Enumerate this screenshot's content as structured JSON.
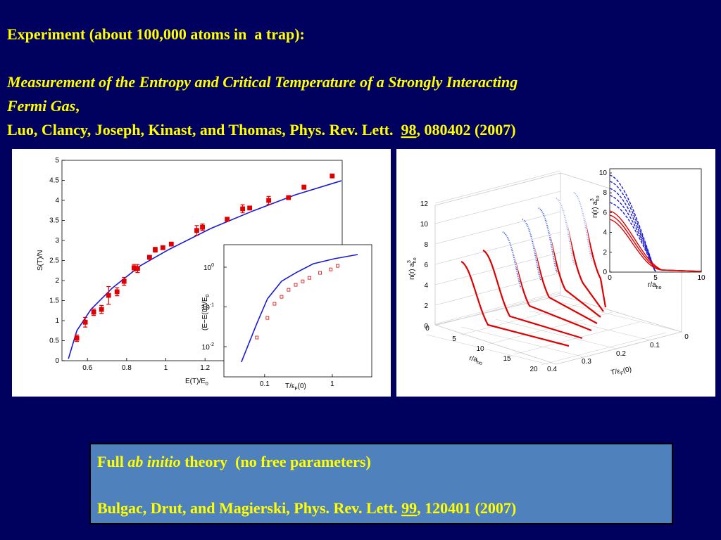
{
  "header": {
    "line1": "Experiment (about 100,000 atoms in  a trap):",
    "paper_title": "Measurement of the Entropy and Critical Temperature of a Strongly Interacting",
    "paper_title_end": "Fermi Gas",
    "comma": ",",
    "authors": "Luo, Clancy, Joseph, Kinast, and Thomas, Phys. Rev. Lett.  ",
    "volume": "98",
    "rest": ", 080402 (2007)"
  },
  "left_figure": {
    "main": {
      "xlabel": {
        "text": "E(T)/E",
        "sub": "0"
      },
      "ylabel": {
        "text": "S(T)/N"
      },
      "xlim": [
        0.47,
        1.9
      ],
      "ylim": [
        0,
        5
      ],
      "xticks": [
        0.6,
        0.8,
        1,
        1.2
      ],
      "yticks": [
        0,
        0.5,
        1,
        1.5,
        2,
        2.5,
        3,
        3.5,
        4,
        4.5,
        5
      ],
      "experiment": {
        "color": "#e00000",
        "x": [
          0.546,
          0.589,
          0.632,
          0.672,
          0.708,
          0.751,
          0.787,
          0.838,
          0.856,
          0.917,
          0.946,
          0.985,
          1.028,
          1.158,
          1.187,
          1.313,
          1.392,
          1.428,
          1.525,
          1.626,
          1.705,
          1.849
        ],
        "values": [
          0.56,
          0.96,
          1.21,
          1.28,
          1.63,
          1.72,
          1.98,
          2.32,
          2.3,
          2.58,
          2.77,
          2.82,
          2.91,
          3.25,
          3.33,
          3.53,
          3.79,
          3.81,
          4.0,
          4.07,
          4.33,
          4.61
        ],
        "errors": [
          0.08,
          0.12,
          0.08,
          0.1,
          0.22,
          0.1,
          0.1,
          0.08,
          0.1,
          0.05,
          0.06,
          0.04,
          0.04,
          0.12,
          0.08,
          0.04,
          0.1,
          0.04,
          0.1,
          0.04,
          0.05,
          0.04
        ]
      },
      "theory": {
        "color": "#1a1ad6",
        "x": [
          0.503,
          0.546,
          0.618,
          0.726,
          0.87,
          1.014,
          1.23,
          1.446,
          1.662,
          1.896
        ],
        "values": [
          0.05,
          0.75,
          1.28,
          1.81,
          2.37,
          2.77,
          3.3,
          3.74,
          4.14,
          4.49
        ]
      }
    },
    "inset": {
      "xlabel": {
        "text": "T/ε",
        "sub": "F",
        "after": "(0)"
      },
      "ylabel": {
        "text": "(E−E(0))/E",
        "sub": "0"
      },
      "xlim": [
        0.025,
        3.83
      ],
      "ylim": [
        0.00174,
        3.68
      ],
      "log": true,
      "xticks": [
        0.1,
        1
      ],
      "yticks": [
        {
          "value": 0.01,
          "label": "10",
          "exponent": "-2"
        },
        {
          "value": 0.1,
          "label": "10",
          "exponent": "-1"
        },
        {
          "value": 1,
          "label": "10",
          "exponent": "0"
        }
      ],
      "experiment": {
        "color": "#e00000",
        "x": [
          0.0767,
          0.11,
          0.14,
          0.178,
          0.226,
          0.288,
          0.365,
          0.46,
          0.66,
          0.95,
          1.2
        ],
        "values": [
          0.017,
          0.053,
          0.12,
          0.18,
          0.27,
          0.36,
          0.44,
          0.54,
          0.72,
          0.88,
          1.08
        ]
      },
      "theory": {
        "color": "#1a1ad6",
        "x": [
          0.0453,
          0.0767,
          0.11,
          0.178,
          0.288,
          0.524,
          1.07,
          2.37
        ],
        "values": [
          0.0041,
          0.0384,
          0.16,
          0.443,
          0.72,
          1.22,
          1.63,
          2.08
        ]
      }
    }
  },
  "right_figure": {
    "zlabel": {
      "text": "n(r) a",
      "sup": "3",
      "sub": "ho"
    },
    "rlabel": {
      "text": "r/a",
      "sub": "ho"
    },
    "tlabel": {
      "text": "T/ε",
      "sub": "F",
      "after": "(0)"
    },
    "zticks": [
      0,
      2,
      4,
      6,
      8,
      10,
      12
    ],
    "rticks": [
      0,
      5,
      10,
      15,
      20
    ],
    "tticks": [
      0,
      0.1,
      0.2,
      0.3,
      0.4
    ],
    "inset": {
      "ylabel": {
        "text": "n(r) a",
        "sup": "3",
        "sub": "ho"
      },
      "xlabel": {
        "text": "r/a",
        "sub": "ho"
      },
      "yticks": [
        0,
        2,
        4,
        6,
        8,
        10
      ],
      "xticks": [
        0,
        5,
        10
      ]
    }
  },
  "box": {
    "full": "Full ",
    "ab_initio": "ab initio",
    "theory": " theory  (no free parameters)",
    "authors": "Bulgac, Drut, and Magierski, Phys. Rev. Lett. ",
    "volume": "99",
    "rest": ", 120401 (2007)"
  }
}
